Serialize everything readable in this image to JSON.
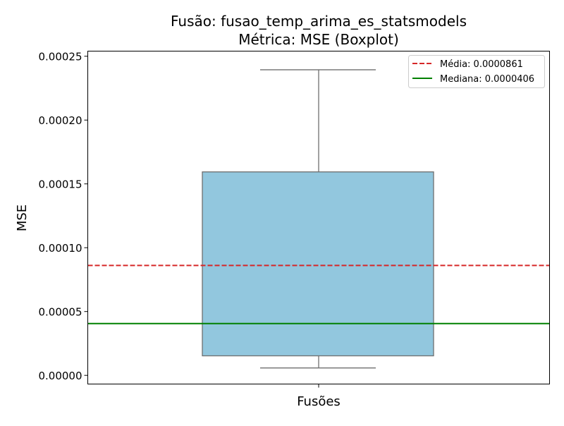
{
  "chart_data": {
    "type": "boxplot",
    "title": "Fusão: fusao_temp_arima_es_statsmodels",
    "subtitle": "Métrica: MSE (Boxplot)",
    "xlabel": "Fusões",
    "ylabel": "MSE",
    "ylim": [
      -6.8e-06,
      0.000254
    ],
    "yticks": [
      0,
      5e-05,
      0.0001,
      0.00015,
      0.0002,
      0.00025
    ],
    "ytick_labels": [
      "0.00000",
      "0.00005",
      "0.00010",
      "0.00015",
      "0.00020",
      "0.00025"
    ],
    "box": {
      "whisker_low": 5.8e-06,
      "q1": 1.53e-05,
      "median": 4.06e-05,
      "q3": 0.0001594,
      "whisker_high": 0.0002394,
      "fill_color": "#92c7de",
      "edge_color": "#6f6f6f"
    },
    "reference_lines": [
      {
        "label": "Média: 0.0000861",
        "value": 8.61e-05,
        "color": "#d62728",
        "style": "dashed"
      },
      {
        "label": "Mediana: 0.0000406",
        "value": 4.06e-05,
        "color": "#008000",
        "style": "solid"
      }
    ],
    "legend_position": "top-right",
    "grid": false
  }
}
